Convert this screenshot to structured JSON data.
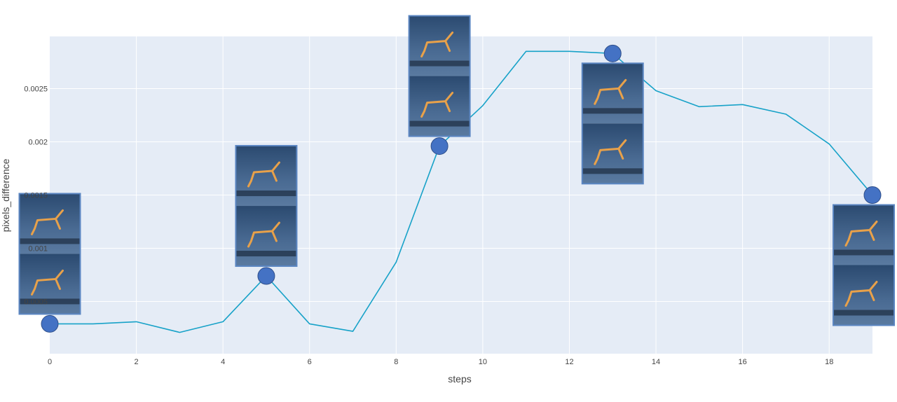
{
  "chart_data": {
    "type": "line",
    "xlabel": "steps",
    "ylabel": "pixels_difference",
    "xlim": [
      0,
      19
    ],
    "ylim": [
      1e-05,
      0.00299
    ],
    "x_ticks": [
      0,
      2,
      4,
      6,
      8,
      10,
      12,
      14,
      16,
      18
    ],
    "x_tick_labels": [
      "0",
      "2",
      "4",
      "6",
      "8",
      "10",
      "12",
      "14",
      "16",
      "18"
    ],
    "y_ticks": [
      0.0005,
      0.001,
      0.0015,
      0.002,
      0.0025
    ],
    "y_tick_labels": [
      "0.0005",
      "0.001",
      "0.0015",
      "0.002",
      "0.0025"
    ],
    "grid": true,
    "legend": "none",
    "series": [
      {
        "x": [
          0,
          1,
          2,
          3,
          4,
          5,
          6,
          7,
          8,
          9,
          10,
          11,
          12,
          13,
          14,
          15,
          16,
          17,
          18,
          19
        ],
        "y": [
          0.00029,
          0.00029,
          0.00031,
          0.00021,
          0.00031,
          0.00074,
          0.00029,
          0.00022,
          0.00087,
          0.00196,
          0.00234,
          0.00285,
          0.00285,
          0.00283,
          0.00248,
          0.00233,
          0.00235,
          0.00226,
          0.00198,
          0.0015
        ],
        "color": "#17a2c8"
      }
    ],
    "highlighted_points": {
      "x": [
        0,
        5,
        9,
        13,
        19
      ],
      "y": [
        0.00029,
        0.00074,
        0.00196,
        0.00283,
        0.0015
      ],
      "color": "#4472c4"
    },
    "thumbnails": {
      "description_icon": "walker-robot-frames",
      "panel_colors": [
        "#2b4a70",
        "#5a7aa0"
      ],
      "robot_color": "#e8a14a",
      "attached_to_steps": [
        0,
        5,
        9,
        13,
        19
      ]
    },
    "colors": {
      "plot_background": "#e5ecf6",
      "grid": "#ffffff",
      "line": "#17a2c8",
      "marker": "#4472c4"
    }
  }
}
